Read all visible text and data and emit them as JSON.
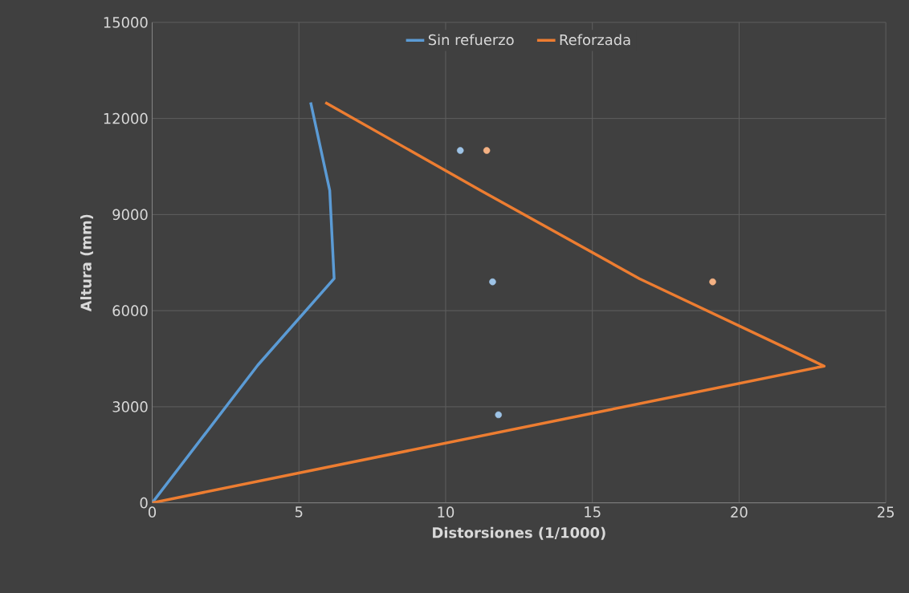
{
  "chart_data": {
    "type": "line",
    "xlabel": "Distorsiones (1/1000)",
    "ylabel": "Altura (mm)",
    "xlim": [
      0,
      25
    ],
    "xticks": [
      0,
      5,
      10,
      15,
      20,
      25
    ],
    "ylim": [
      0,
      15000
    ],
    "yticks": [
      0,
      3000,
      6000,
      9000,
      12000,
      15000
    ],
    "grid": true,
    "legend": "top",
    "line_style": "solid",
    "series": [
      {
        "name": "Sin refuerzo",
        "marker": "none",
        "color": "#5b9bd5",
        "x": [
          0,
          3.6,
          6.2,
          6.05,
          5.4
        ],
        "values": [
          0,
          4300,
          7000,
          9750,
          12500
        ]
      },
      {
        "name": "Reforzada",
        "marker": "none",
        "color": "#ed7d31",
        "x": [
          0,
          22.9,
          16.6,
          11.2,
          5.9
        ],
        "values": [
          0,
          4270,
          7000,
          9750,
          12500
        ]
      },
      {
        "type": "scatter",
        "marker": "circle",
        "color": "#9dc3e6",
        "x": [
          10.5,
          11.6,
          11.8
        ],
        "values": [
          11000,
          6900,
          2750
        ]
      },
      {
        "type": "scatter",
        "marker": "circle",
        "color": "#f4b183",
        "x": [
          11.4,
          19.1
        ],
        "values": [
          11000,
          6900
        ]
      }
    ]
  }
}
